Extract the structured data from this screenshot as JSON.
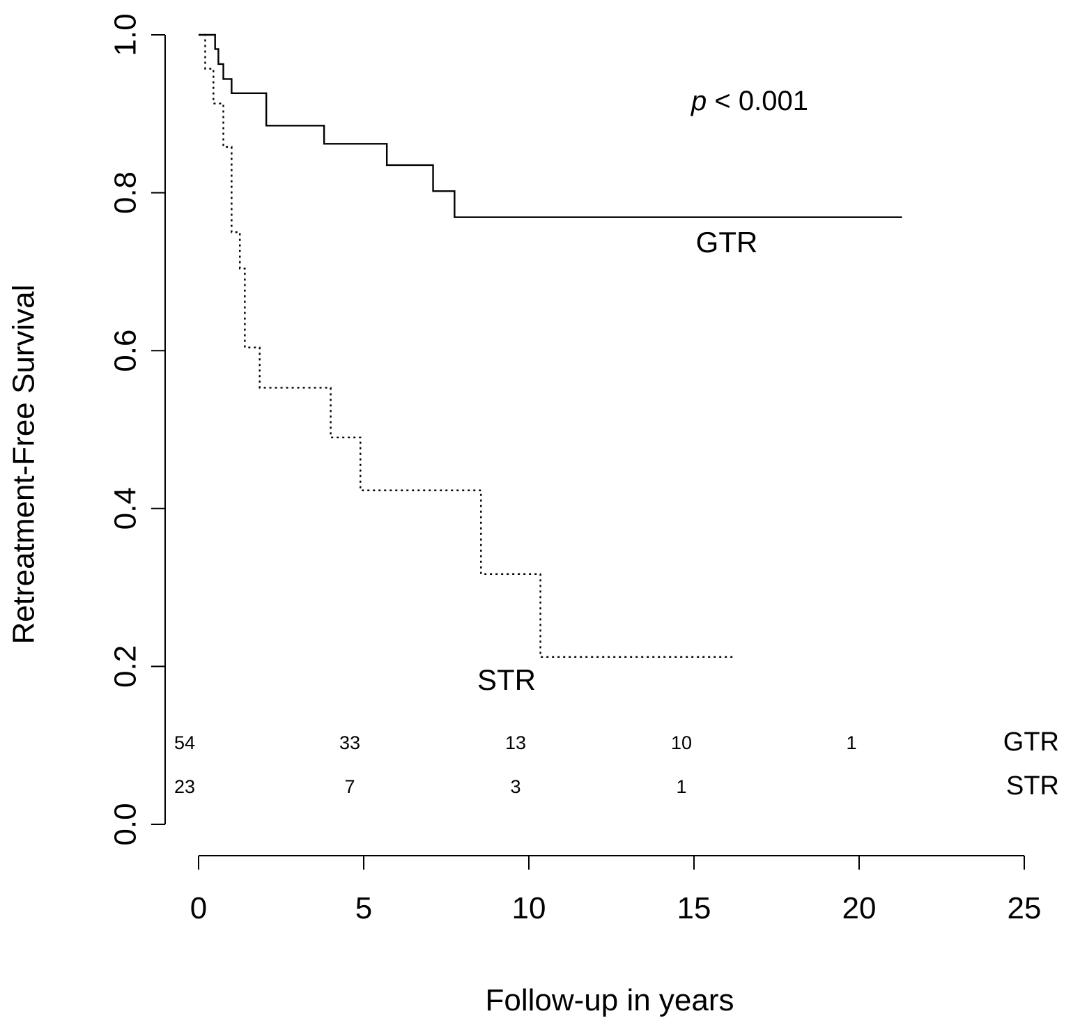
{
  "chart_data": {
    "type": "line",
    "subtype": "kaplan-meier",
    "title": "",
    "xlabel": "Follow-up in years",
    "ylabel": "Retreatment-Free Survival",
    "xlim": [
      0,
      25
    ],
    "ylim": [
      0,
      1
    ],
    "x_ticks": [
      "0",
      "5",
      "10",
      "15",
      "20",
      "25"
    ],
    "y_ticks": [
      "0.0",
      "0.2",
      "0.4",
      "0.6",
      "0.8",
      "1.0"
    ],
    "annotation_p_symbol": "p",
    "annotation_p_rest": " < 0.001",
    "series": [
      {
        "name": "GTR",
        "line_style": "solid",
        "label": "GTR",
        "x": [
          0,
          0.45,
          0.5,
          0.6,
          0.75,
          0.9,
          1.0,
          2.0,
          2.05,
          3.8,
          5.7,
          7.1,
          7.75,
          21.3
        ],
        "y": [
          1.0,
          1.0,
          0.982,
          0.963,
          0.944,
          0.944,
          0.926,
          0.926,
          0.885,
          0.862,
          0.835,
          0.802,
          0.769,
          0.769
        ]
      },
      {
        "name": "STR",
        "line_style": "dotted",
        "label": "STR",
        "x": [
          0,
          0.2,
          0.45,
          0.75,
          1.0,
          1.25,
          1.4,
          1.85,
          4.0,
          4.9,
          8.55,
          10.35,
          16.2
        ],
        "y": [
          1.0,
          0.957,
          0.913,
          0.858,
          0.75,
          0.704,
          0.604,
          0.553,
          0.49,
          0.423,
          0.317,
          0.212,
          0.212
        ]
      }
    ],
    "risk_table": {
      "times": [
        0,
        5,
        10,
        15,
        20
      ],
      "rows": [
        {
          "name": "GTR",
          "values": [
            "54",
            "33",
            "13",
            "10",
            "1"
          ]
        },
        {
          "name": "STR",
          "values": [
            "23",
            "7",
            "3",
            "1",
            ""
          ]
        }
      ]
    }
  }
}
